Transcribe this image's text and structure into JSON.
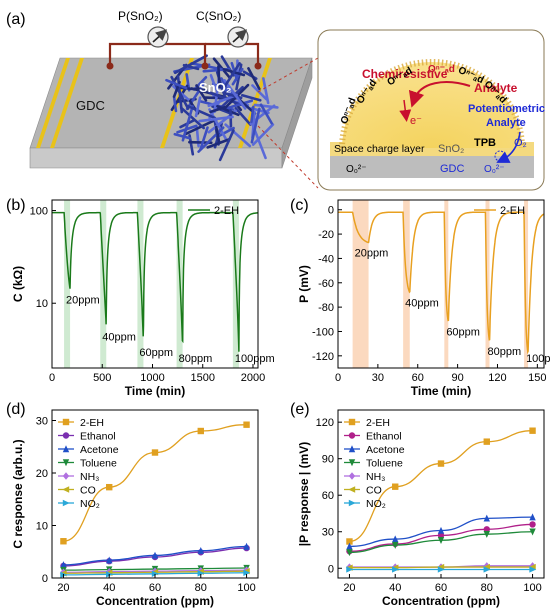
{
  "panels": {
    "a": {
      "label": "(a)",
      "meter_p": "P(SnO₂)",
      "meter_c": "C(SnO₂)",
      "gdc": "GDC",
      "sno2": "SnO₂",
      "inset": {
        "chemiresistive": "Chemiresistive",
        "analyte_top": "Analyte",
        "electron": "e⁻",
        "oxygen_species": "Oⁿ⁻ₐd",
        "potentiometric": "Potentiometric",
        "analyte_blue": "Analyte",
        "tpb": "TPB",
        "o2": "O₂",
        "space_charge": "Space charge layer",
        "sno2": "SnO₂",
        "gdc": "GDC",
        "o_lattice_left": "O₀²⁻",
        "o_lattice_right": "O₀²⁻",
        "colors": {
          "analyte_red": "#c8102e",
          "analyte_blue": "#1f2bd6",
          "sno2_yellow": "#f7d55a",
          "gdc_gray": "#b8b8b8"
        }
      }
    },
    "b": {
      "label": "(b)"
    },
    "c": {
      "label": "(c)"
    },
    "d": {
      "label": "(d)"
    },
    "e": {
      "label": "(e)"
    }
  },
  "chart_data": [
    {
      "panel": "b",
      "type": "line",
      "xlabel": "Time (min)",
      "ylabel": "C (kΩ)",
      "yscale": "log",
      "xlim": [
        0,
        2050
      ],
      "ylim": [
        2,
        130
      ],
      "xticks": [
        0,
        500,
        1000,
        1500,
        2000
      ],
      "yticks": [
        10,
        100
      ],
      "legend": "2-EH",
      "legend_position": "top-right",
      "color": "#1a7a1a",
      "baseline": 95,
      "highlight_color": "#cfead1",
      "pulses": [
        {
          "label": "20ppm",
          "start": 120,
          "duration": 60,
          "min": 14
        },
        {
          "label": "40ppm",
          "start": 480,
          "duration": 60,
          "min": 5.6
        },
        {
          "label": "60ppm",
          "start": 850,
          "duration": 60,
          "min": 3.8
        },
        {
          "label": "80ppm",
          "start": 1240,
          "duration": 60,
          "min": 3.2
        },
        {
          "label": "100ppm",
          "start": 1800,
          "duration": 60,
          "min": 2.9
        }
      ]
    },
    {
      "panel": "c",
      "type": "line",
      "xlabel": "Time (min)",
      "ylabel": "P (mV)",
      "xlim": [
        0,
        155
      ],
      "ylim": [
        -130,
        8
      ],
      "xticks": [
        0,
        30,
        60,
        90,
        120,
        150
      ],
      "yticks": [
        0,
        -20,
        -40,
        -60,
        -80,
        -100,
        -120
      ],
      "legend": "2-EH",
      "legend_position": "top-right",
      "color": "#e8a020",
      "baseline": -2,
      "highlight_color": "#fbd9bf",
      "pulses": [
        {
          "label": "20ppm",
          "start": 11,
          "duration": 12,
          "min": -27
        },
        {
          "label": "40ppm",
          "start": 49,
          "duration": 5,
          "min": -68
        },
        {
          "label": "60ppm",
          "start": 80,
          "duration": 3,
          "min": -92
        },
        {
          "label": "80ppm",
          "start": 111,
          "duration": 3,
          "min": -108
        },
        {
          "label": "100ppm",
          "start": 140,
          "duration": 3,
          "min": -118
        }
      ]
    },
    {
      "panel": "d",
      "type": "line",
      "xlabel": "Concentration (ppm)",
      "ylabel": "C response (arb.u.)",
      "x": [
        20,
        40,
        60,
        80,
        100
      ],
      "xlim": [
        15,
        105
      ],
      "ylim": [
        0,
        32
      ],
      "xticks": [
        20,
        40,
        60,
        80,
        100
      ],
      "yticks": [
        0,
        10,
        20,
        30
      ],
      "legend_position": "top-left",
      "series": [
        {
          "name": "2-EH",
          "marker": "square",
          "color": "#e0a020",
          "values": [
            7,
            17.3,
            23.9,
            28,
            29.2
          ]
        },
        {
          "name": "Ethanol",
          "marker": "circle",
          "color": "#7a2fb0",
          "values": [
            2.3,
            3.2,
            4,
            4.9,
            5.7
          ]
        },
        {
          "name": "Acetone",
          "marker": "triangle-up",
          "color": "#2050c8",
          "values": [
            2.5,
            3.4,
            4.3,
            5.2,
            6
          ]
        },
        {
          "name": "Toluene",
          "marker": "triangle-down",
          "color": "#1f8a3a",
          "values": [
            1.5,
            1.6,
            1.7,
            1.8,
            1.9
          ]
        },
        {
          "name": "NH₃",
          "marker": "diamond",
          "color": "#b070e0",
          "values": [
            1.1,
            1.2,
            1.3,
            1.4,
            1.5
          ]
        },
        {
          "name": "CO",
          "marker": "triangle-left",
          "color": "#c0b020",
          "values": [
            0.9,
            1,
            1.1,
            1.2,
            1.3
          ]
        },
        {
          "name": "NO₂",
          "marker": "triangle-right",
          "color": "#2aa8d8",
          "values": [
            0.6,
            0.7,
            0.8,
            0.9,
            1
          ]
        }
      ]
    },
    {
      "panel": "e",
      "type": "line",
      "xlabel": "Concentration (ppm)",
      "ylabel": "|P response | (mV)",
      "x": [
        20,
        40,
        60,
        80,
        100
      ],
      "xlim": [
        15,
        105
      ],
      "ylim": [
        -8,
        130
      ],
      "xticks": [
        20,
        40,
        60,
        80,
        100
      ],
      "yticks": [
        0,
        30,
        60,
        90,
        120
      ],
      "legend_position": "top-left",
      "series": [
        {
          "name": "2-EH",
          "marker": "square",
          "color": "#e0a020",
          "values": [
            22,
            67,
            86,
            104,
            113
          ]
        },
        {
          "name": "Ethanol",
          "marker": "circle",
          "color": "#b0208a",
          "values": [
            14,
            20,
            27,
            32,
            36
          ]
        },
        {
          "name": "Acetone",
          "marker": "triangle-up",
          "color": "#2050c8",
          "values": [
            18,
            24,
            31,
            41,
            42
          ]
        },
        {
          "name": "Toluene",
          "marker": "triangle-down",
          "color": "#1f8a3a",
          "values": [
            13,
            19,
            23,
            28,
            30
          ]
        },
        {
          "name": "NH₃",
          "marker": "diamond",
          "color": "#b070e0",
          "values": [
            1,
            1,
            1,
            2,
            2
          ]
        },
        {
          "name": "CO",
          "marker": "triangle-left",
          "color": "#c0b020",
          "values": [
            0.5,
            0.5,
            1,
            1,
            1
          ]
        },
        {
          "name": "NO₂",
          "marker": "triangle-right",
          "color": "#2aa8d8",
          "values": [
            -1,
            -1,
            -1,
            -1,
            -1
          ]
        }
      ]
    }
  ]
}
